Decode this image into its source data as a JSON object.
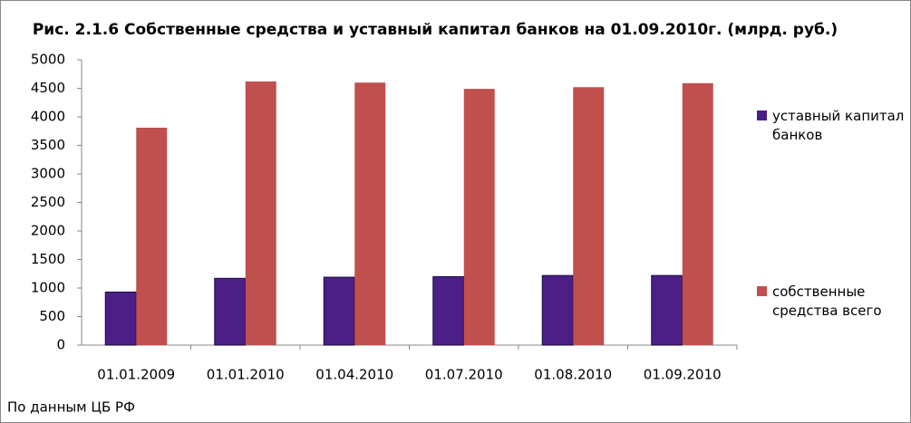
{
  "chart_data": {
    "type": "bar",
    "title": "Рис. 2.1.6 Собственные средства и уставный капитал банков на 01.09.2010г. (млрд. руб.)",
    "categories": [
      "01.01.2009",
      "01.01.2010",
      "01.04.2010",
      "01.07.2010",
      "01.08.2010",
      "01.09.2010"
    ],
    "series": [
      {
        "name": "уставный капитал банков",
        "color": "#4b1f86",
        "values": [
          930,
          1170,
          1190,
          1200,
          1220,
          1220
        ]
      },
      {
        "name": "собственные средства всего",
        "color": "#c0504d",
        "values": [
          3810,
          4620,
          4600,
          4490,
          4520,
          4590
        ]
      }
    ],
    "ylim": [
      0,
      5000
    ],
    "yticks": [
      0,
      500,
      1000,
      1500,
      2000,
      2500,
      3000,
      3500,
      4000,
      4500,
      5000
    ],
    "grid": false,
    "legend": "right",
    "note": "По данным ЦБ РФ"
  }
}
